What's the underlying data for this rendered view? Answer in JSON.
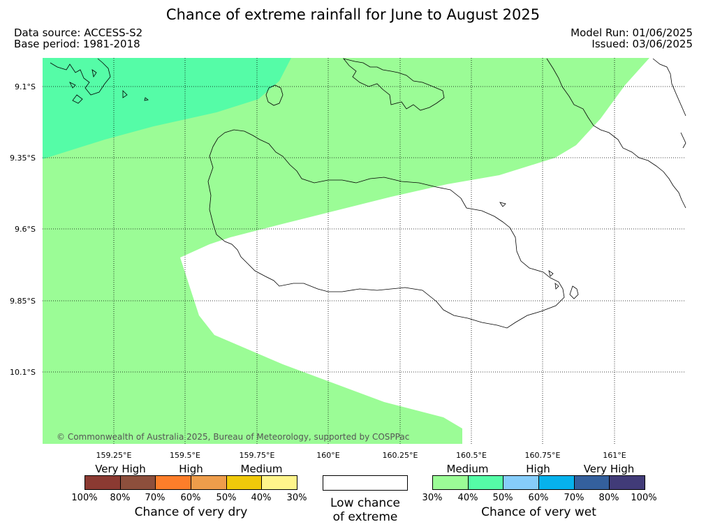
{
  "header": {
    "title": "Chance of extreme rainfall for June to August 2025",
    "data_source": "Data source: ACCESS-S2",
    "base_period": "Base period: 1981-2018",
    "model_run": "Model Run: 01/06/2025",
    "issued": "Issued: 03/06/2025"
  },
  "map": {
    "lon_ticks": [
      "159.25°E",
      "159.5°E",
      "159.75°E",
      "160°E",
      "160.25°E",
      "160.5°E",
      "160.75°E",
      "161°E"
    ],
    "lat_ticks": [
      "9.1°S",
      "9.35°S",
      "9.6°S",
      "9.85°S",
      "10.1°S"
    ],
    "copyright": "© Commonwealth of Australia 2025, Bureau of Meteorology, supported by COSPPac",
    "colors": {
      "wet_medium": "#9bfc96",
      "wet_high": "#55fca7",
      "land_outline": "#000000"
    }
  },
  "legend": {
    "dry": {
      "categories": [
        "Very High",
        "High",
        "Medium"
      ],
      "colors": [
        "#8b3a32",
        "#8d4f3c",
        "#fd7e2a",
        "#ee9d4b",
        "#f0c90a",
        "#fff58b"
      ],
      "ticks": [
        "100%",
        "80%",
        "70%",
        "60%",
        "50%",
        "40%",
        "30%"
      ],
      "label": "Chance of very dry"
    },
    "neutral": {
      "label_line1": "Low chance",
      "label_line2": "of extreme",
      "color": "#ffffff"
    },
    "wet": {
      "categories": [
        "Medium",
        "High",
        "Very High"
      ],
      "colors": [
        "#9bfc96",
        "#55fca7",
        "#86cdfa",
        "#06b2ec",
        "#34609d",
        "#413b78"
      ],
      "ticks": [
        "30%",
        "40%",
        "50%",
        "60%",
        "70%",
        "80%",
        "100%"
      ],
      "label": "Chance of very wet"
    }
  }
}
